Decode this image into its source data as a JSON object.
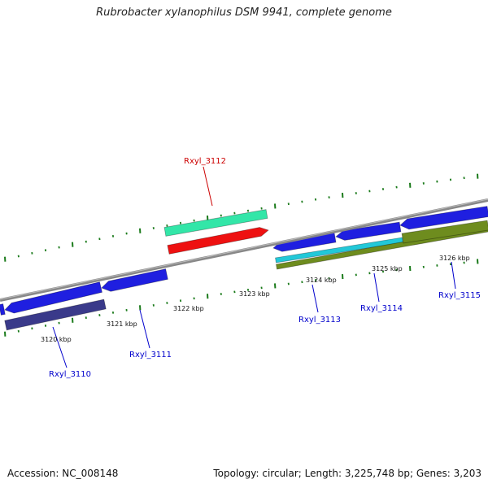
{
  "title": "Rubrobacter xylanophilus DSM 9941, complete genome",
  "footer": {
    "accession": "Accession: NC_008148",
    "topology": "Topology: circular; Length: 3,225,748 bp; Genes: 3,203"
  },
  "colors": {
    "backbone": "#8c8c8c",
    "tick": "#1a7a1a",
    "cds_blue": "#1f1fe0",
    "cds_dark_blue": "#3a3a8a",
    "cds_red": "#ee1111",
    "cds_aquamarine": "#33e6a8",
    "cds_cyan": "#22c8d8",
    "cds_olive": "#6e8c1e",
    "label_blue": "#0000cc",
    "label_red": "#cc0000"
  },
  "scale_labels": [
    {
      "id": "k3120",
      "text": "3120 kbp"
    },
    {
      "id": "k3121",
      "text": "3121 kbp"
    },
    {
      "id": "k3122",
      "text": "3122 kbp"
    },
    {
      "id": "k3123",
      "text": "3123 kbp"
    },
    {
      "id": "k3124",
      "text": "3124 kbp"
    },
    {
      "id": "k3125",
      "text": "3125 kbp"
    },
    {
      "id": "k3126",
      "text": "3126 kbp"
    }
  ],
  "gene_labels": [
    {
      "id": "g3110",
      "text": "Rxyl_3110",
      "color": "#0000cc"
    },
    {
      "id": "g3111",
      "text": "Rxyl_3111",
      "color": "#0000cc"
    },
    {
      "id": "g3112",
      "text": "Rxyl_3112",
      "color": "#cc0000"
    },
    {
      "id": "g3113",
      "text": "Rxyl_3113",
      "color": "#0000cc"
    },
    {
      "id": "g3114",
      "text": "Rxyl_3114",
      "color": "#0000cc"
    },
    {
      "id": "g3115",
      "text": "Rxyl_3115",
      "color": "#0000cc"
    }
  ]
}
